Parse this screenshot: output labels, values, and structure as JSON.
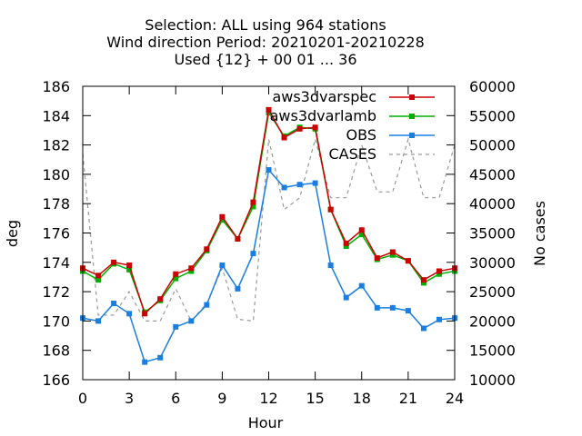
{
  "chart_data": {
    "type": "line",
    "title_lines": [
      "Selection: ALL using   964 stations",
      "Wind direction   Period: 20210201-20210228",
      "Used {12} + 00 01 ... 36"
    ],
    "xlabel": "Hour",
    "ylabel": "deg",
    "y2label": "No cases",
    "xlim": [
      0,
      24
    ],
    "ylim": [
      166,
      186
    ],
    "y2lim": [
      10000,
      60000
    ],
    "x_ticks": [
      0,
      3,
      6,
      9,
      12,
      15,
      18,
      21,
      24
    ],
    "y_ticks": [
      166,
      168,
      170,
      172,
      174,
      176,
      178,
      180,
      182,
      184,
      186
    ],
    "y2_ticks": [
      10000,
      15000,
      20000,
      25000,
      30000,
      35000,
      40000,
      45000,
      50000,
      55000,
      60000
    ],
    "grid": false,
    "legend_position": "top-right",
    "x": [
      0,
      1,
      2,
      3,
      4,
      5,
      6,
      7,
      8,
      9,
      10,
      11,
      12,
      13,
      14,
      15,
      16,
      17,
      18,
      19,
      20,
      21,
      22,
      23,
      24
    ],
    "series": [
      {
        "name": "aws3dvarspec",
        "color": "#cc0000",
        "marker": "square",
        "axis": "y",
        "values": [
          173.6,
          173.1,
          174.0,
          173.8,
          170.5,
          171.5,
          173.2,
          173.6,
          174.9,
          177.1,
          175.6,
          178.1,
          184.4,
          182.5,
          183.1,
          183.2,
          177.6,
          175.3,
          176.2,
          174.3,
          174.7,
          174.1,
          172.8,
          173.4,
          173.6
        ]
      },
      {
        "name": "aws3dvarlamb",
        "color": "#00b000",
        "marker": "square",
        "axis": "y",
        "values": [
          173.4,
          172.8,
          173.9,
          173.5,
          170.6,
          171.4,
          172.9,
          173.4,
          174.8,
          176.9,
          175.6,
          177.8,
          184.2,
          182.6,
          183.2,
          183.1,
          177.6,
          175.1,
          175.9,
          174.2,
          174.5,
          174.1,
          172.6,
          173.2,
          173.4
        ]
      },
      {
        "name": "OBS",
        "color": "#1a7ee0",
        "marker": "square",
        "axis": "y",
        "values": [
          170.2,
          170.0,
          171.2,
          170.5,
          167.2,
          167.5,
          169.6,
          170.0,
          171.1,
          173.8,
          172.2,
          174.6,
          180.3,
          179.1,
          179.3,
          179.4,
          173.8,
          171.6,
          172.4,
          170.9,
          170.9,
          170.7,
          169.5,
          170.1,
          170.2
        ]
      },
      {
        "name": "CASES",
        "color": "#999999",
        "marker": "none",
        "dashed": true,
        "axis": "y2",
        "values": [
          48500,
          21000,
          21000,
          25000,
          20000,
          20000,
          25500,
          20000,
          23000,
          29000,
          20300,
          20000,
          51000,
          39000,
          41000,
          51000,
          41000,
          41000,
          50000,
          42000,
          42000,
          51000,
          41000,
          41000,
          50000
        ]
      }
    ]
  }
}
